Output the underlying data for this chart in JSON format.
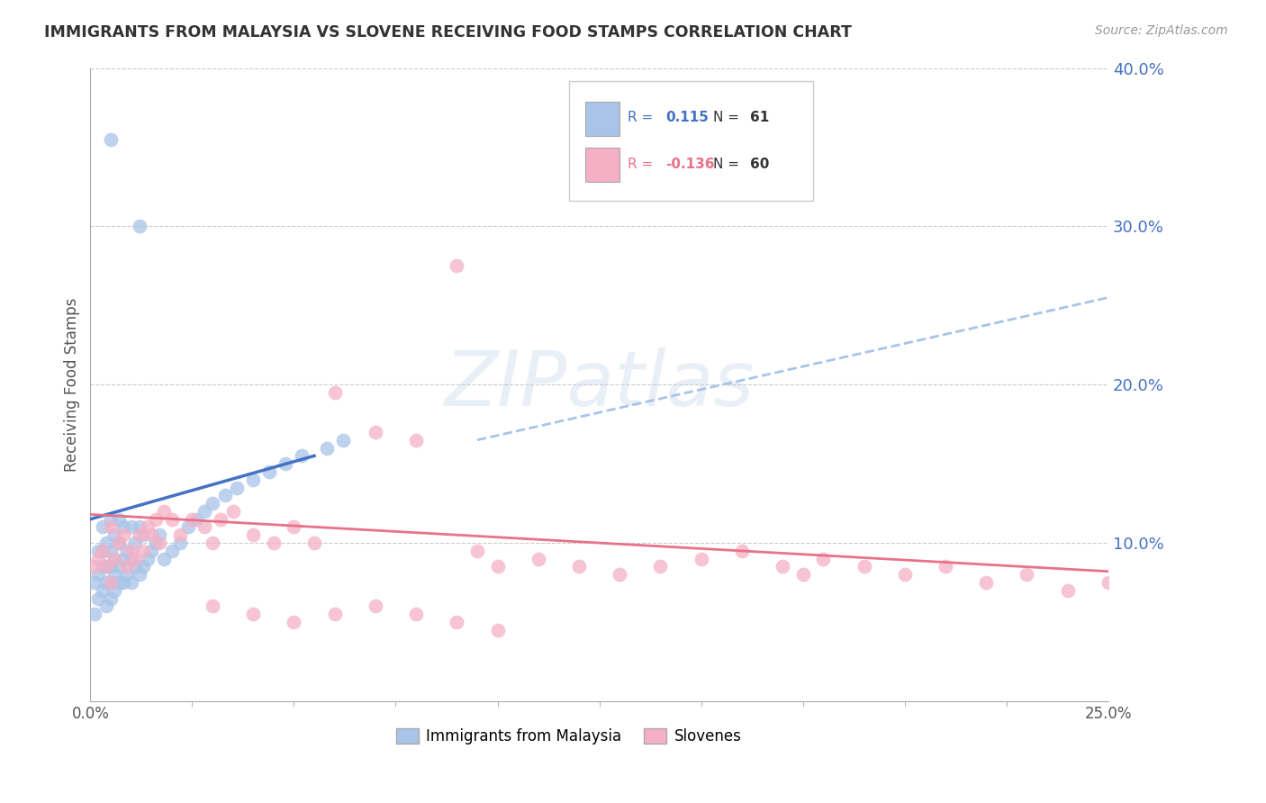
{
  "title": "IMMIGRANTS FROM MALAYSIA VS SLOVENE RECEIVING FOOD STAMPS CORRELATION CHART",
  "source": "Source: ZipAtlas.com",
  "ylabel": "Receiving Food Stamps",
  "xlim": [
    0.0,
    0.25
  ],
  "ylim": [
    0.0,
    0.4
  ],
  "xtick_positions": [
    0.0,
    0.25
  ],
  "xtick_labels": [
    "0.0%",
    "25.0%"
  ],
  "xtick_minor_positions": [
    0.025,
    0.05,
    0.075,
    0.1,
    0.125,
    0.15,
    0.175,
    0.2,
    0.225
  ],
  "ytick_positions": [
    0.1,
    0.2,
    0.3,
    0.4
  ],
  "ytick_labels_right": [
    "10.0%",
    "20.0%",
    "30.0%",
    "40.0%"
  ],
  "legend_labels": [
    "Immigrants from Malaysia",
    "Slovenes"
  ],
  "blue_color": "#a8c4e8",
  "pink_color": "#f5b0c5",
  "blue_line_color": "#4472c4",
  "pink_line_color": "#e8728a",
  "dashed_line_color": "#a8c4e8",
  "watermark": "ZIPatlas",
  "r_blue": 0.115,
  "n_blue": 61,
  "r_pink": -0.136,
  "n_pink": 60,
  "blue_scatter_x": [
    0.001,
    0.001,
    0.002,
    0.002,
    0.002,
    0.003,
    0.003,
    0.003,
    0.003,
    0.004,
    0.004,
    0.004,
    0.004,
    0.005,
    0.005,
    0.005,
    0.005,
    0.005,
    0.006,
    0.006,
    0.006,
    0.006,
    0.007,
    0.007,
    0.007,
    0.007,
    0.008,
    0.008,
    0.008,
    0.009,
    0.009,
    0.01,
    0.01,
    0.01,
    0.011,
    0.011,
    0.012,
    0.012,
    0.013,
    0.013,
    0.014,
    0.015,
    0.016,
    0.017,
    0.018,
    0.02,
    0.022,
    0.024,
    0.026,
    0.028,
    0.03,
    0.033,
    0.036,
    0.04,
    0.044,
    0.048,
    0.052,
    0.058,
    0.062,
    0.005,
    0.012
  ],
  "blue_scatter_y": [
    0.055,
    0.075,
    0.065,
    0.08,
    0.095,
    0.07,
    0.085,
    0.095,
    0.11,
    0.06,
    0.075,
    0.085,
    0.1,
    0.065,
    0.075,
    0.085,
    0.095,
    0.115,
    0.07,
    0.08,
    0.09,
    0.105,
    0.075,
    0.085,
    0.1,
    0.115,
    0.075,
    0.09,
    0.11,
    0.08,
    0.095,
    0.075,
    0.09,
    0.11,
    0.085,
    0.1,
    0.08,
    0.11,
    0.085,
    0.105,
    0.09,
    0.095,
    0.1,
    0.105,
    0.09,
    0.095,
    0.1,
    0.11,
    0.115,
    0.12,
    0.125,
    0.13,
    0.135,
    0.14,
    0.145,
    0.15,
    0.155,
    0.16,
    0.165,
    0.355,
    0.3
  ],
  "pink_scatter_x": [
    0.001,
    0.002,
    0.003,
    0.004,
    0.005,
    0.005,
    0.006,
    0.007,
    0.008,
    0.009,
    0.01,
    0.011,
    0.012,
    0.013,
    0.014,
    0.015,
    0.016,
    0.017,
    0.018,
    0.02,
    0.022,
    0.025,
    0.028,
    0.03,
    0.032,
    0.035,
    0.04,
    0.045,
    0.05,
    0.055,
    0.06,
    0.07,
    0.08,
    0.09,
    0.095,
    0.1,
    0.11,
    0.12,
    0.13,
    0.14,
    0.15,
    0.16,
    0.17,
    0.175,
    0.18,
    0.19,
    0.2,
    0.21,
    0.22,
    0.23,
    0.24,
    0.25,
    0.03,
    0.04,
    0.05,
    0.06,
    0.07,
    0.08,
    0.09,
    0.1
  ],
  "pink_scatter_y": [
    0.085,
    0.09,
    0.095,
    0.085,
    0.075,
    0.11,
    0.09,
    0.1,
    0.105,
    0.085,
    0.095,
    0.09,
    0.105,
    0.095,
    0.11,
    0.105,
    0.115,
    0.1,
    0.12,
    0.115,
    0.105,
    0.115,
    0.11,
    0.1,
    0.115,
    0.12,
    0.105,
    0.1,
    0.11,
    0.1,
    0.195,
    0.17,
    0.165,
    0.275,
    0.095,
    0.085,
    0.09,
    0.085,
    0.08,
    0.085,
    0.09,
    0.095,
    0.085,
    0.08,
    0.09,
    0.085,
    0.08,
    0.085,
    0.075,
    0.08,
    0.07,
    0.075,
    0.06,
    0.055,
    0.05,
    0.055,
    0.06,
    0.055,
    0.05,
    0.045
  ],
  "blue_trend_x": [
    0.0,
    0.055
  ],
  "blue_trend_y": [
    0.115,
    0.155
  ],
  "pink_trend_x": [
    0.0,
    0.25
  ],
  "pink_trend_y": [
    0.118,
    0.082
  ],
  "dashed_line_x": [
    0.095,
    0.25
  ],
  "dashed_line_y": [
    0.165,
    0.255
  ]
}
